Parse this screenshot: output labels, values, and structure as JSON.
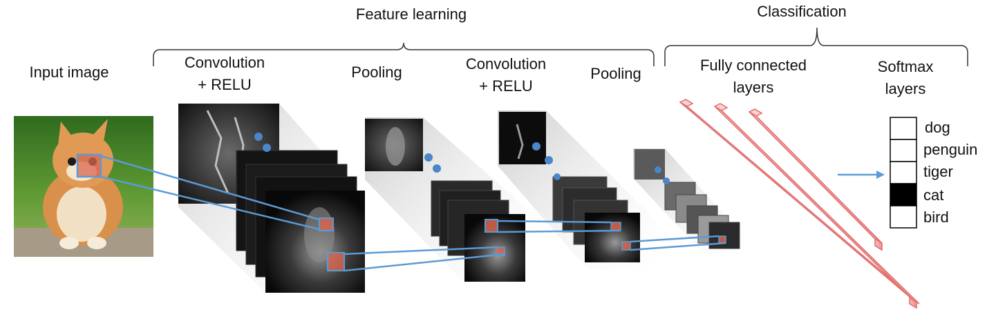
{
  "headers": {
    "feature_learning": "Feature learning",
    "classification": "Classification"
  },
  "labels": {
    "input_image": "Input image",
    "conv1_line1": "Convolution",
    "conv1_line2": "+ RELU",
    "pool1": "Pooling",
    "conv2_line1": "Convolution",
    "conv2_line2": "+ RELU",
    "pool2": "Pooling",
    "fc_line1": "Fully connected",
    "fc_line2": "layers",
    "softmax_line1": "Softmax",
    "softmax_line2": "layers"
  },
  "classes": [
    {
      "name": "dog",
      "active": false
    },
    {
      "name": "penguin",
      "active": false
    },
    {
      "name": "tiger",
      "active": false
    },
    {
      "name": "cat",
      "active": true
    },
    {
      "name": "bird",
      "active": false
    }
  ],
  "colors": {
    "connector": "#5b9bd5",
    "dot": "#4a86c8",
    "receptive_field": "#d9654f",
    "fc_layer": "#f4a8a8",
    "fc_layer_edge": "#e06a6a",
    "brace": "#333333",
    "active_class": "#000000"
  },
  "icons": {
    "input_image": "kitten-photo",
    "feature_maps": "grayscale-feature-map",
    "continuation": "blue-dots",
    "output_arrow": "arrow-right-icon"
  }
}
